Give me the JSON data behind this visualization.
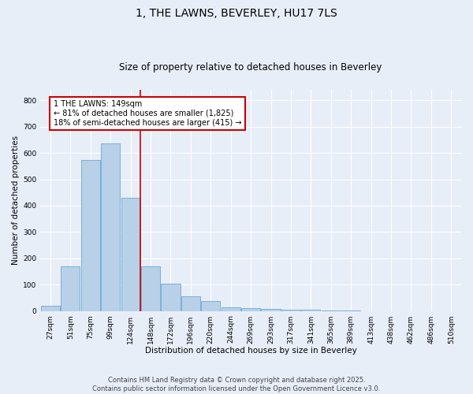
{
  "title": "1, THE LAWNS, BEVERLEY, HU17 7LS",
  "subtitle": "Size of property relative to detached houses in Beverley",
  "xlabel": "Distribution of detached houses by size in Beverley",
  "ylabel": "Number of detached properties",
  "categories": [
    "27sqm",
    "51sqm",
    "75sqm",
    "99sqm",
    "124sqm",
    "148sqm",
    "172sqm",
    "196sqm",
    "220sqm",
    "244sqm",
    "269sqm",
    "293sqm",
    "317sqm",
    "341sqm",
    "365sqm",
    "389sqm",
    "413sqm",
    "438sqm",
    "462sqm",
    "486sqm",
    "510sqm"
  ],
  "values": [
    20,
    170,
    575,
    635,
    430,
    170,
    105,
    55,
    37,
    15,
    12,
    9,
    6,
    4,
    3,
    1,
    0,
    0,
    0,
    0,
    0
  ],
  "bar_color": "#b8d0e8",
  "bar_edge_color": "#6aaad4",
  "marker_label": "1 THE LAWNS: 149sqm",
  "annotation_line1": "← 81% of detached houses are smaller (1,825)",
  "annotation_line2": "18% of semi-detached houses are larger (415) →",
  "annotation_box_color": "#ffffff",
  "annotation_box_edge_color": "#cc0000",
  "marker_line_color": "#cc0000",
  "background_color": "#e8eef8",
  "plot_background_color": "#e8eef8",
  "grid_color": "#ffffff",
  "ylim": [
    0,
    840
  ],
  "yticks": [
    0,
    100,
    200,
    300,
    400,
    500,
    600,
    700,
    800
  ],
  "footer_line1": "Contains HM Land Registry data © Crown copyright and database right 2025.",
  "footer_line2": "Contains public sector information licensed under the Open Government Licence v3.0.",
  "title_fontsize": 10,
  "subtitle_fontsize": 8.5,
  "axis_label_fontsize": 7.5,
  "tick_fontsize": 6.5,
  "annotation_fontsize": 7,
  "footer_fontsize": 6
}
